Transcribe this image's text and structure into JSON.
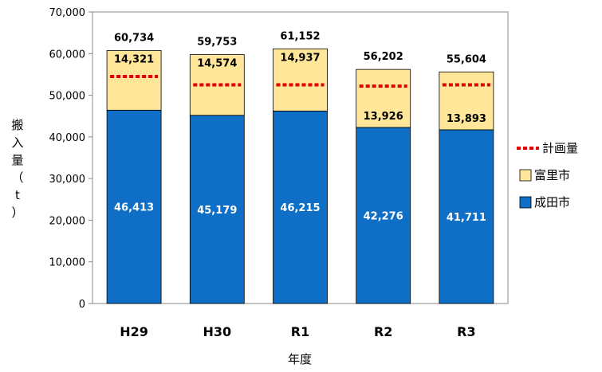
{
  "chart_data": {
    "type": "bar",
    "stacked": true,
    "categories": [
      "H29",
      "H30",
      "R1",
      "R2",
      "R3"
    ],
    "series": [
      {
        "name": "成田市",
        "values": [
          46413,
          45179,
          46215,
          42276,
          41711
        ],
        "color": "#0F6FC6"
      },
      {
        "name": "富里市",
        "values": [
          14321,
          14574,
          14937,
          13926,
          13893
        ],
        "color": "#FFE699"
      }
    ],
    "value_labels": {
      "成田市": [
        "46,413",
        "45,179",
        "46,215",
        "42,276",
        "41,711"
      ],
      "富里市": [
        "14,321",
        "14,574",
        "14,937",
        "13,926",
        "13,893"
      ]
    },
    "totals": [
      60734,
      59753,
      61152,
      56202,
      55604
    ],
    "total_labels": [
      "60,734",
      "59,753",
      "61,152",
      "56,202",
      "55,604"
    ],
    "plan": {
      "name": "計画量",
      "values": [
        54500,
        52500,
        52500,
        52200,
        52500
      ],
      "color": "#E00000",
      "style": "dotted"
    },
    "ylim": [
      0,
      70000
    ],
    "yticks": [
      0,
      10000,
      20000,
      30000,
      40000,
      50000,
      60000,
      70000
    ],
    "ytick_labels": [
      "0",
      "10,000",
      "20,000",
      "30,000",
      "40,000",
      "50,000",
      "60,000",
      "70,000"
    ],
    "xlabel": "年度",
    "ylabel_chars": [
      "搬",
      "入",
      "量",
      "（",
      "t",
      "）"
    ],
    "legend": {
      "position": "right",
      "entries": [
        {
          "label": "計画量",
          "kind": "dotted-line",
          "color": "#E00000"
        },
        {
          "label": "富里市",
          "kind": "box",
          "color": "#FFE699"
        },
        {
          "label": "成田市",
          "kind": "box",
          "color": "#0F6FC6"
        }
      ]
    },
    "grid": false
  }
}
